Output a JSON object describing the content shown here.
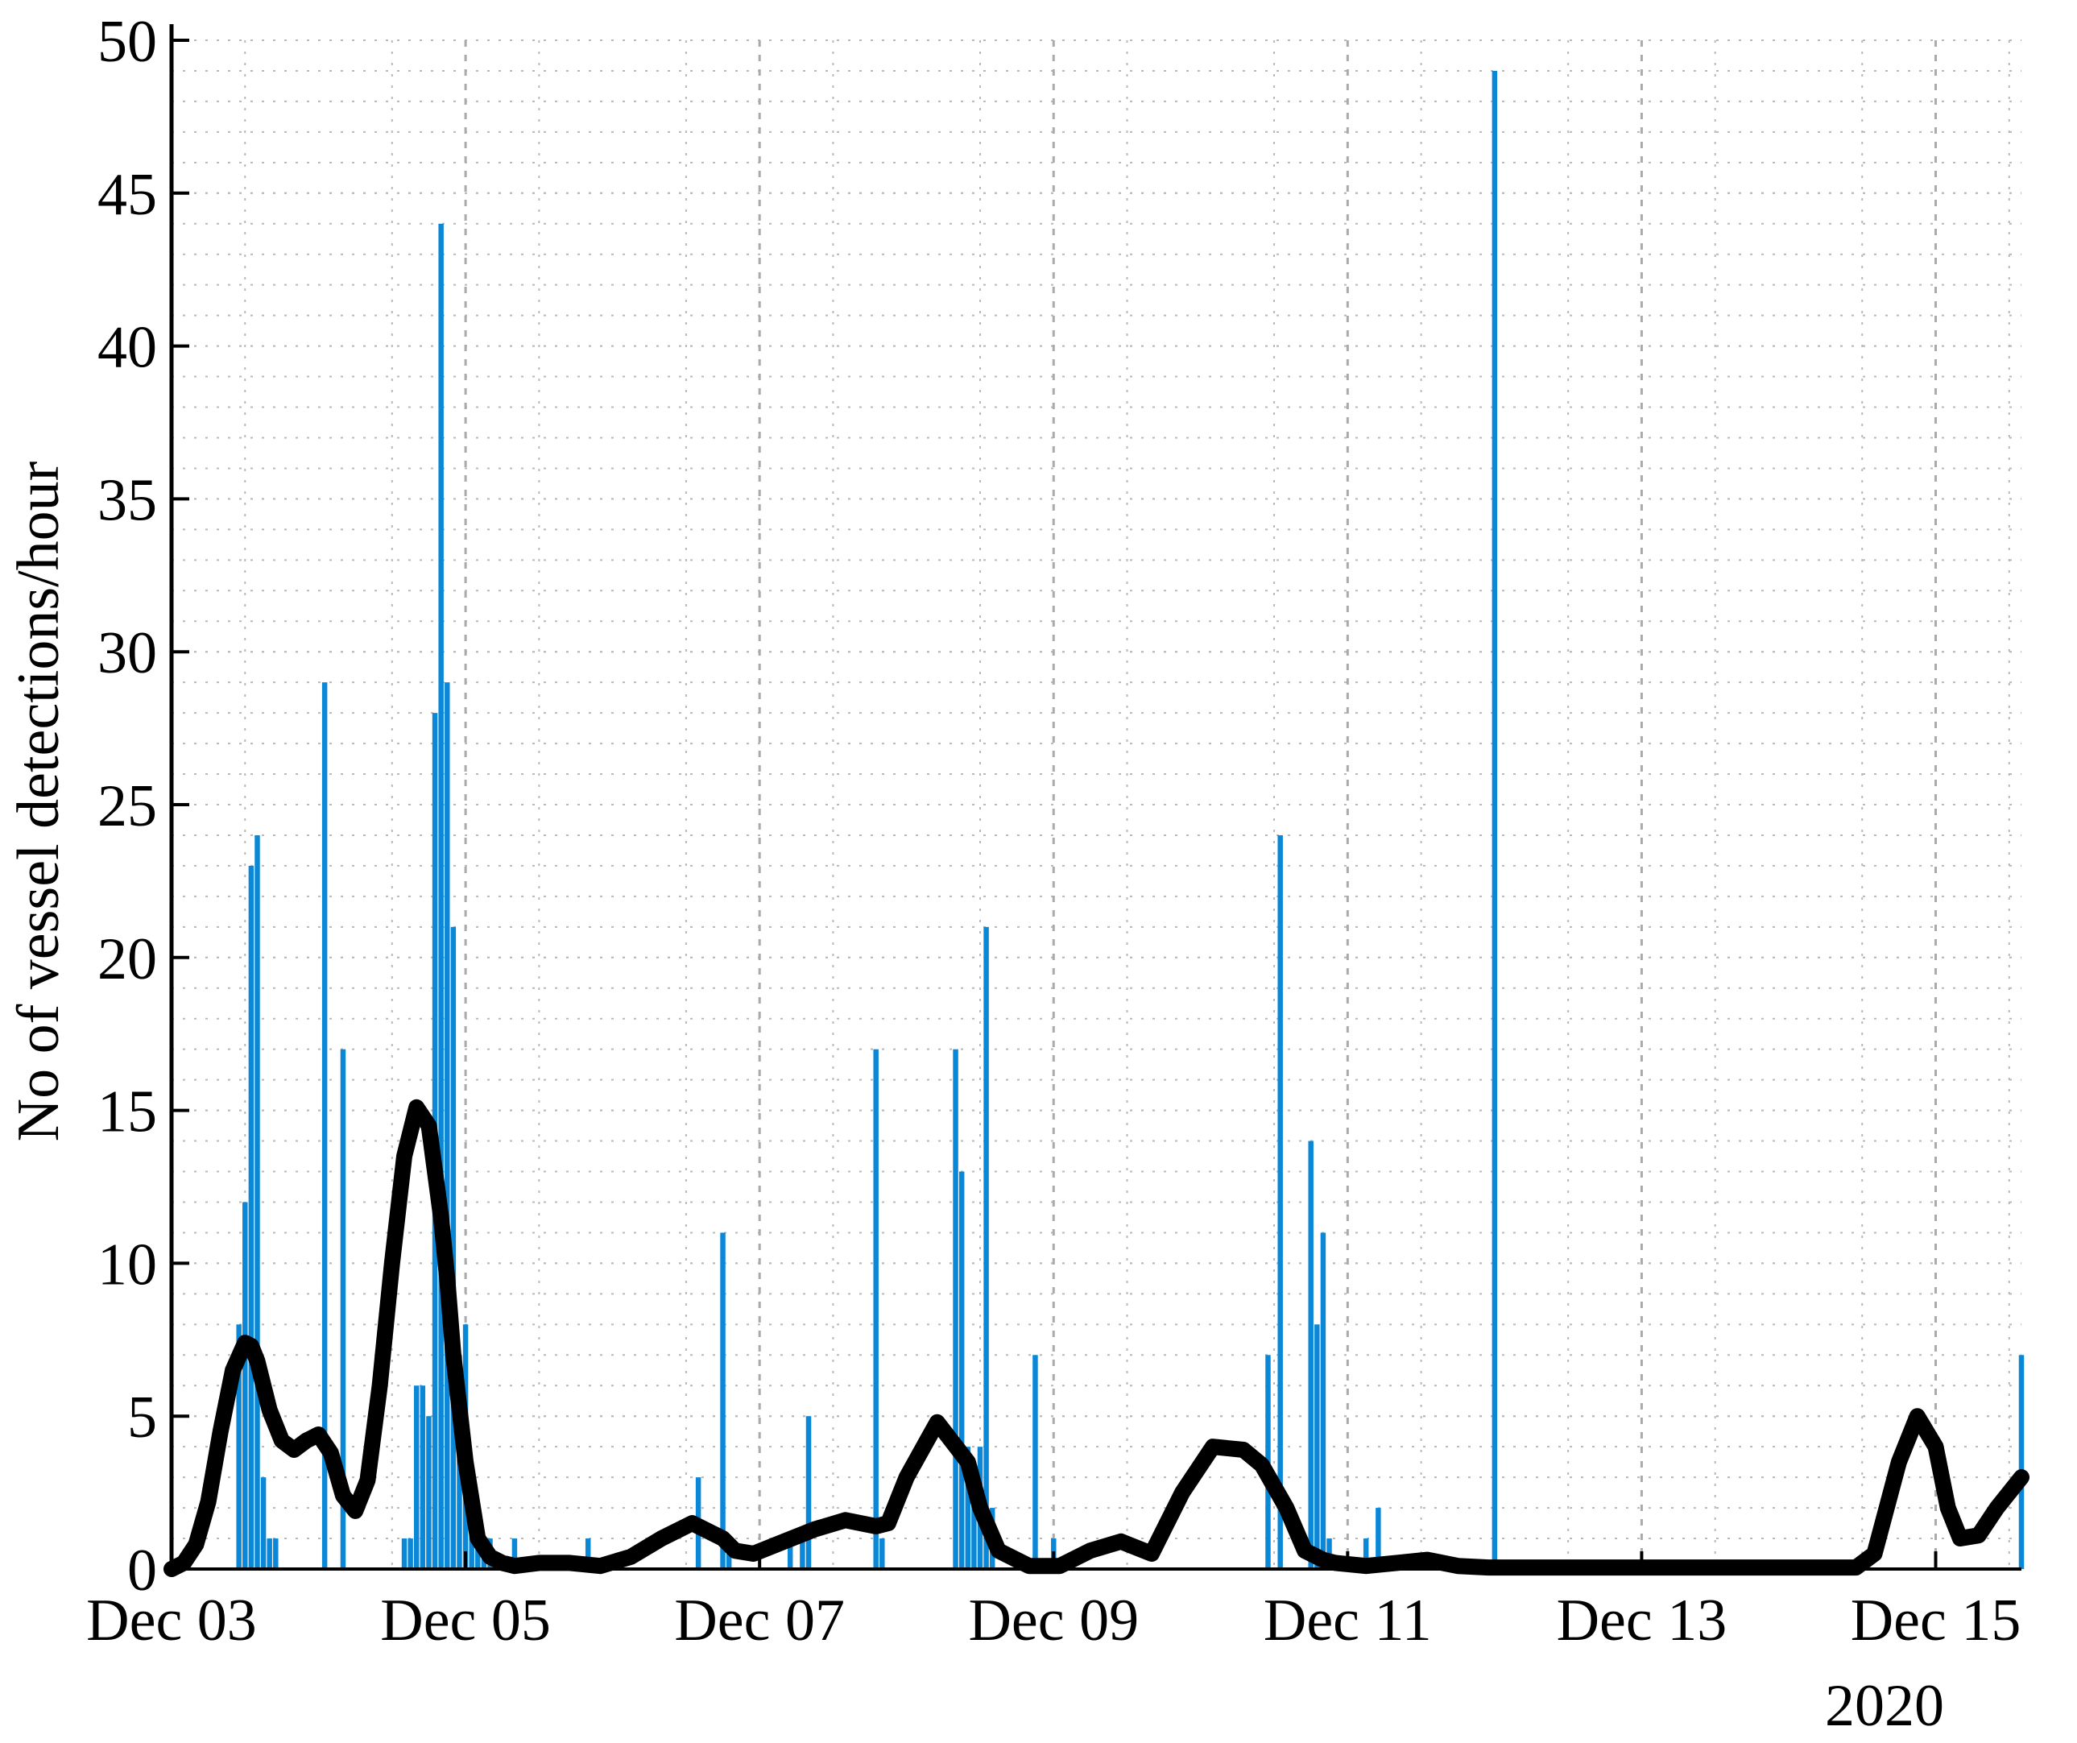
{
  "chart_data": {
    "type": "bar",
    "title": "",
    "ylabel": "No of vessel detections/hour",
    "xlabel": "",
    "year_label": "2020",
    "x_unit": "hours since Dec 03 2020 00:00",
    "xlim": [
      0,
      302
    ],
    "ylim": [
      0,
      50
    ],
    "grid": true,
    "minor_grid": true,
    "legend": "none",
    "xtick_labels": [
      "Dec 03",
      "Dec 05",
      "Dec 07",
      "Dec 09",
      "Dec 11",
      "Dec 13",
      "Dec 15"
    ],
    "ytick_labels": [
      "0",
      "5",
      "10",
      "15",
      "20",
      "25",
      "30",
      "35",
      "40",
      "45",
      "50"
    ],
    "colors": {
      "bars": "#0b87d8",
      "curve": "#000000",
      "grid": "#b8b8b8"
    },
    "series": [
      {
        "type": "bar",
        "x": [
          11,
          12,
          13,
          14,
          15,
          16,
          17,
          25,
          28,
          38,
          39,
          40,
          41,
          42,
          43,
          44,
          45,
          46,
          47,
          48,
          49,
          50,
          51,
          52,
          56,
          68,
          86,
          90,
          91,
          101,
          103,
          104,
          115,
          116,
          128,
          129,
          130,
          131,
          132,
          133,
          134,
          141,
          144,
          179,
          181,
          186,
          187,
          188,
          189,
          195,
          197,
          216,
          302
        ],
        "values": [
          8,
          12,
          23,
          24,
          3,
          1,
          1,
          29,
          17,
          1,
          1,
          6,
          6,
          5,
          28,
          44,
          29,
          21,
          7,
          8,
          2,
          1,
          1,
          1,
          1,
          1,
          3,
          11,
          1,
          1,
          1,
          5,
          17,
          1,
          17,
          13,
          4,
          3,
          4,
          21,
          2,
          7,
          1,
          7,
          24,
          14,
          8,
          11,
          1,
          1,
          2,
          49,
          7
        ]
      },
      {
        "type": "line",
        "x": [
          0,
          2,
          4,
          6,
          8,
          10,
          12,
          13,
          14,
          16,
          18,
          20,
          22,
          24,
          26,
          28,
          30,
          32,
          34,
          36,
          38,
          40,
          42,
          44,
          45,
          46,
          48,
          50,
          52,
          54,
          56,
          60,
          65,
          70,
          75,
          80,
          85,
          90,
          92,
          95,
          100,
          105,
          110,
          115,
          117,
          120,
          125,
          130,
          132,
          135,
          140,
          145,
          150,
          155,
          160,
          165,
          170,
          175,
          178,
          182,
          185,
          188,
          190,
          195,
          200,
          205,
          210,
          215,
          220,
          250,
          275,
          278,
          282,
          285,
          288,
          290,
          292,
          295,
          298,
          302
        ],
        "values": [
          0,
          0.2,
          0.8,
          2.2,
          4.5,
          6.5,
          7.4,
          7.3,
          6.8,
          5.2,
          4.2,
          3.9,
          4.2,
          4.4,
          3.8,
          2.4,
          1.9,
          2.9,
          6,
          10,
          13.5,
          15.1,
          14.5,
          11.5,
          9.5,
          7,
          3.5,
          1,
          0.4,
          0.2,
          0.1,
          0.2,
          0.2,
          0.1,
          0.4,
          1.0,
          1.5,
          1.0,
          0.6,
          0.5,
          0.9,
          1.3,
          1.6,
          1.4,
          1.5,
          3,
          4.8,
          3.5,
          2,
          0.6,
          0.1,
          0.1,
          0.6,
          0.9,
          0.5,
          2.5,
          4.0,
          3.9,
          3.4,
          2,
          0.6,
          0.3,
          0.2,
          0.1,
          0.2,
          0.3,
          0.1,
          0.05,
          0.05,
          0.05,
          0.05,
          0.5,
          3.5,
          5,
          4,
          2,
          1,
          1.1,
          2,
          3
        ]
      }
    ]
  }
}
